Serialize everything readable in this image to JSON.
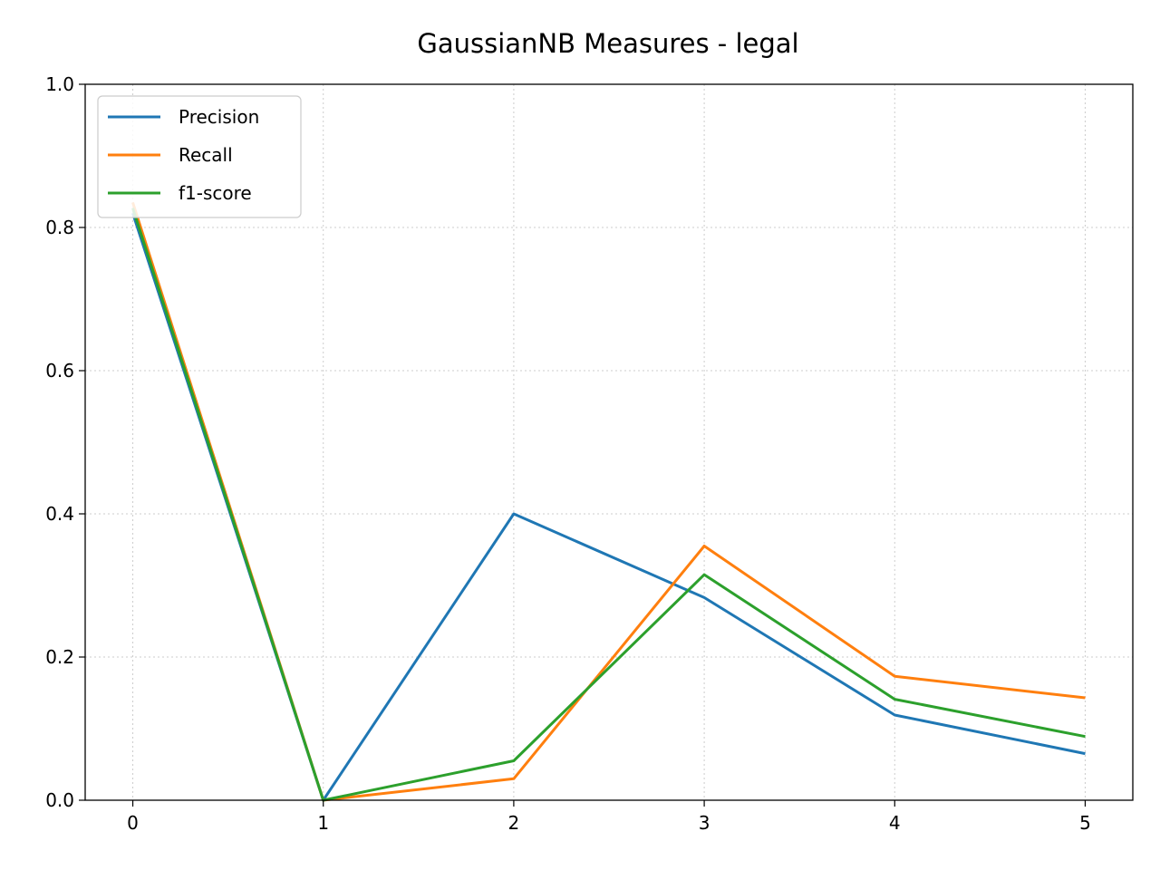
{
  "chart_data": {
    "type": "line",
    "title": "GaussianNB Measures - legal",
    "xlabel": "",
    "ylabel": "",
    "x": [
      0,
      1,
      2,
      3,
      4,
      5
    ],
    "xlim": [
      -0.25,
      5.25
    ],
    "ylim": [
      0.0,
      1.0
    ],
    "x_ticks": [
      "0",
      "1",
      "2",
      "3",
      "4",
      "5"
    ],
    "y_ticks": [
      "0.0",
      "0.2",
      "0.4",
      "0.6",
      "0.8",
      "1.0"
    ],
    "grid": true,
    "legend_position": "top-left",
    "series": [
      {
        "name": "Precision",
        "color": "#1f77b4",
        "values": [
          0.82,
          0.0,
          0.4,
          0.283,
          0.119,
          0.065
        ]
      },
      {
        "name": "Recall",
        "color": "#ff7f0e",
        "values": [
          0.835,
          0.0,
          0.03,
          0.355,
          0.173,
          0.143
        ]
      },
      {
        "name": "f1-score",
        "color": "#2ca02c",
        "values": [
          0.827,
          0.0,
          0.055,
          0.315,
          0.141,
          0.089
        ]
      }
    ]
  }
}
